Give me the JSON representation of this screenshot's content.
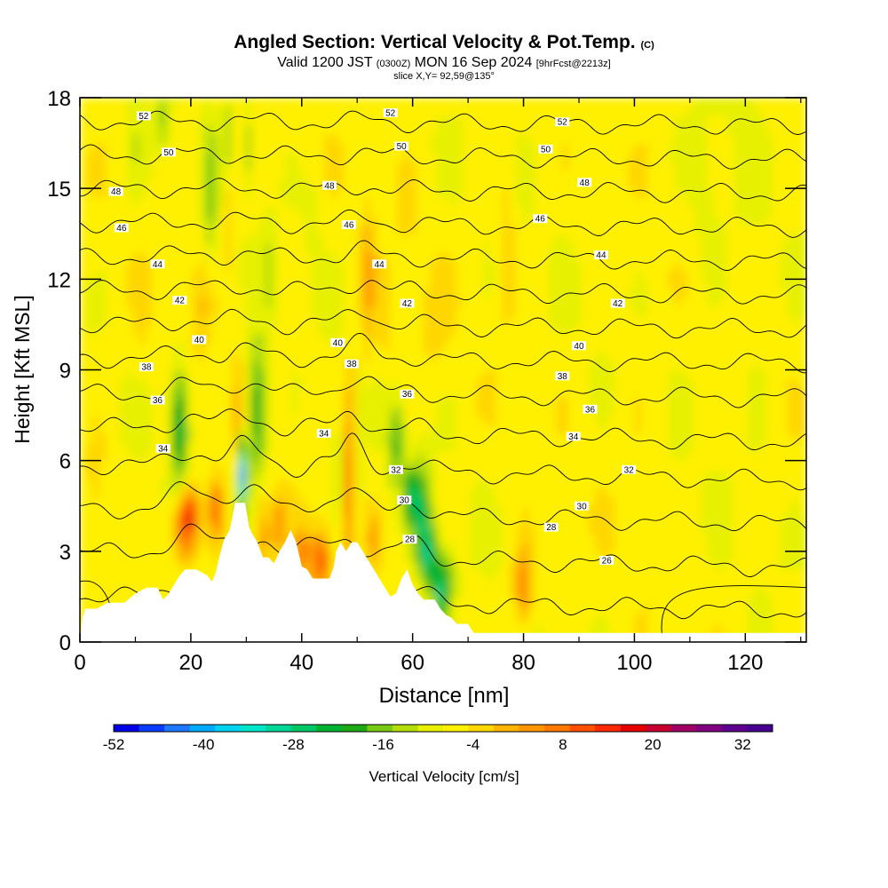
{
  "header": {
    "title_main": "Angled Section: Vertical Velocity & Pot.Temp.",
    "title_suffix": "(C)",
    "valid_prefix": "Valid 1200 JST",
    "valid_utc": "(0300Z)",
    "valid_date": "MON 16 Sep 2024",
    "forecast_info": "[9hrFcst@2213z]",
    "slice": "slice X,Y= 92,59@135°"
  },
  "chart_data": {
    "type": "heatmap",
    "xlabel": "Distance [nm]",
    "ylabel": "Height [Kft MSL]",
    "xlim": [
      0,
      131
    ],
    "ylim": [
      0,
      18
    ],
    "x_ticks": [
      0,
      20,
      40,
      60,
      80,
      100,
      120
    ],
    "y_ticks": [
      0,
      3,
      6,
      9,
      12,
      15,
      18
    ],
    "colorbar": {
      "label": "Vertical Velocity [cm/s]",
      "tick_labels": [
        "-52",
        "-40",
        "-28",
        "-16",
        "-4",
        "8",
        "20",
        "32"
      ],
      "tick_values": [
        -52,
        -40,
        -28,
        -16,
        -4,
        8,
        20,
        32
      ],
      "min": -52,
      "max": 36,
      "step": 4,
      "colors": [
        "#0000e6",
        "#0a3cff",
        "#1e78ff",
        "#00aaff",
        "#00d2f0",
        "#00e6c8",
        "#00d796",
        "#00c864",
        "#00b432",
        "#1eaa14",
        "#78c814",
        "#b4dc0a",
        "#e6f000",
        "#fff000",
        "#ffd700",
        "#ffb400",
        "#ff9600",
        "#ff7800",
        "#ff5000",
        "#ff2800",
        "#e60000",
        "#c80032",
        "#a00064",
        "#800080",
        "#600090",
        "#480090"
      ]
    },
    "terrain_kft": [
      [
        0,
        0
      ],
      [
        0.5,
        0.8
      ],
      [
        1,
        1.1
      ],
      [
        3,
        1.1
      ],
      [
        5,
        1.3
      ],
      [
        8,
        1.3
      ],
      [
        10,
        1.6
      ],
      [
        12,
        1.8
      ],
      [
        14,
        1.8
      ],
      [
        15,
        1.4
      ],
      [
        16,
        1.6
      ],
      [
        18,
        2.2
      ],
      [
        19,
        2.4
      ],
      [
        21,
        2.4
      ],
      [
        23,
        2.2
      ],
      [
        23.8,
        2.0
      ],
      [
        24.5,
        2.3
      ],
      [
        25,
        2.7
      ],
      [
        26,
        3.4
      ],
      [
        27,
        3.7
      ],
      [
        28,
        4.6
      ],
      [
        29.8,
        4.6
      ],
      [
        30.5,
        3.8
      ],
      [
        31,
        3.6
      ],
      [
        32,
        3.3
      ],
      [
        33,
        2.8
      ],
      [
        34,
        2.8
      ],
      [
        35,
        2.6
      ],
      [
        36,
        3.0
      ],
      [
        37,
        3.3
      ],
      [
        38,
        3.7
      ],
      [
        39,
        3.3
      ],
      [
        40,
        2.5
      ],
      [
        41,
        2.4
      ],
      [
        42,
        2.1
      ],
      [
        45,
        2.1
      ],
      [
        45.8,
        2.5
      ],
      [
        46.2,
        3.0
      ],
      [
        47,
        3.3
      ],
      [
        48,
        3.0
      ],
      [
        49,
        3.3
      ],
      [
        50,
        3.3
      ],
      [
        51,
        3.0
      ],
      [
        52,
        2.7
      ],
      [
        53,
        2.4
      ],
      [
        54,
        2.1
      ],
      [
        55,
        1.8
      ],
      [
        56,
        1.5
      ],
      [
        57,
        1.6
      ],
      [
        58,
        2.1
      ],
      [
        59,
        2.4
      ],
      [
        60,
        1.9
      ],
      [
        61,
        1.6
      ],
      [
        62,
        1.4
      ],
      [
        64,
        1.4
      ],
      [
        65,
        1.1
      ],
      [
        66,
        0.9
      ],
      [
        67,
        0.8
      ],
      [
        68,
        0.6
      ],
      [
        70,
        0.6
      ],
      [
        71,
        0.3
      ],
      [
        131,
        0.3
      ],
      [
        131,
        0
      ]
    ],
    "theta_contours_c": [
      26,
      28,
      30,
      32,
      34,
      36,
      38,
      40,
      42,
      44,
      46,
      48,
      50,
      52
    ],
    "theta_labels": [
      {
        "v": "52",
        "x": 11.5,
        "y": 17.4
      },
      {
        "v": "52",
        "x": 56,
        "y": 17.5
      },
      {
        "v": "52",
        "x": 87,
        "y": 17.2
      },
      {
        "v": "50",
        "x": 16,
        "y": 16.2
      },
      {
        "v": "50",
        "x": 58,
        "y": 16.4
      },
      {
        "v": "50",
        "x": 84,
        "y": 16.3
      },
      {
        "v": "48",
        "x": 6.5,
        "y": 14.9
      },
      {
        "v": "48",
        "x": 45,
        "y": 15.1
      },
      {
        "v": "48",
        "x": 91,
        "y": 15.2
      },
      {
        "v": "46",
        "x": 7.5,
        "y": 13.7
      },
      {
        "v": "46",
        "x": 48.5,
        "y": 13.8
      },
      {
        "v": "46",
        "x": 83,
        "y": 14.0
      },
      {
        "v": "44",
        "x": 14,
        "y": 12.5
      },
      {
        "v": "44",
        "x": 54,
        "y": 12.5
      },
      {
        "v": "44",
        "x": 94,
        "y": 12.8
      },
      {
        "v": "42",
        "x": 18,
        "y": 11.3
      },
      {
        "v": "42",
        "x": 59,
        "y": 11.2
      },
      {
        "v": "42",
        "x": 97,
        "y": 11.2
      },
      {
        "v": "40",
        "x": 21.5,
        "y": 10.0
      },
      {
        "v": "40",
        "x": 46.5,
        "y": 9.9
      },
      {
        "v": "40",
        "x": 90,
        "y": 9.8
      },
      {
        "v": "38",
        "x": 12,
        "y": 9.1
      },
      {
        "v": "38",
        "x": 49,
        "y": 9.2
      },
      {
        "v": "38",
        "x": 87,
        "y": 8.8
      },
      {
        "v": "36",
        "x": 14,
        "y": 8.0
      },
      {
        "v": "36",
        "x": 59,
        "y": 8.2
      },
      {
        "v": "36",
        "x": 92,
        "y": 7.7
      },
      {
        "v": "34",
        "x": 15,
        "y": 6.4
      },
      {
        "v": "34",
        "x": 44,
        "y": 6.9
      },
      {
        "v": "34",
        "x": 89,
        "y": 6.8
      },
      {
        "v": "32",
        "x": 57,
        "y": 5.7
      },
      {
        "v": "32",
        "x": 99,
        "y": 5.7
      },
      {
        "v": "30",
        "x": 58.5,
        "y": 4.7
      },
      {
        "v": "30",
        "x": 90.5,
        "y": 4.5
      },
      {
        "v": "28",
        "x": 59.5,
        "y": 3.4
      },
      {
        "v": "28",
        "x": 85,
        "y": 3.8
      },
      {
        "v": "26",
        "x": 95,
        "y": 2.7
      }
    ]
  }
}
